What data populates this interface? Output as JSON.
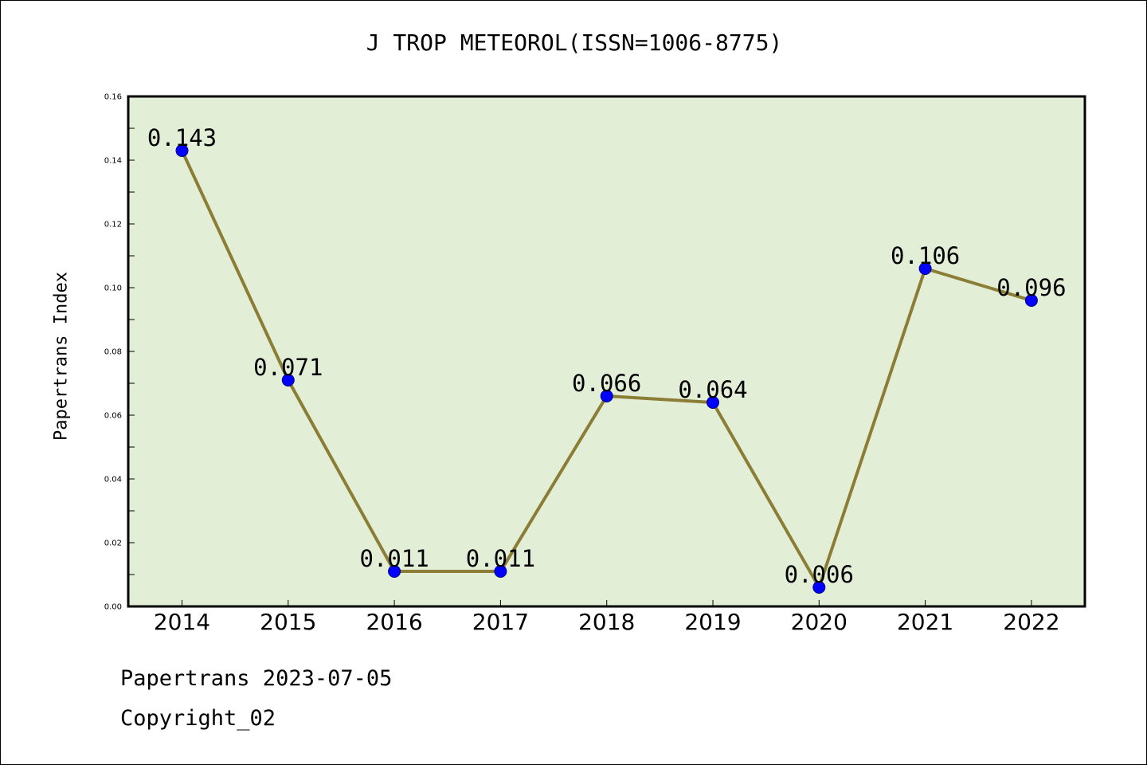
{
  "chart_data": {
    "type": "line",
    "title": "J TROP METEOROL(ISSN=1006-8775)",
    "xlabel": "",
    "ylabel": "Papertrans Index",
    "categories": [
      "2014",
      "2015",
      "2016",
      "2017",
      "2018",
      "2019",
      "2020",
      "2021",
      "2022"
    ],
    "series": [
      {
        "values": [
          0.143,
          0.071,
          0.011,
          0.011,
          0.066,
          0.064,
          0.006,
          0.106,
          0.096
        ],
        "labels": [
          "0.143",
          "0.071",
          "0.011",
          "0.011",
          "0.066",
          "0.064",
          "0.006",
          "0.106",
          "0.096"
        ]
      }
    ],
    "ylim": [
      0,
      0.16
    ],
    "yticks": [
      "0.00",
      "0.02",
      "0.04",
      "0.06",
      "0.08",
      "0.10",
      "0.12",
      "0.14",
      "0.16"
    ],
    "grid": false,
    "legend": "none",
    "colors": {
      "plot_background": "#e2efd6",
      "line": "#8b7d35",
      "marker": "#0000ff",
      "axes": "#000000"
    }
  },
  "footer": {
    "date_line": "Papertrans 2023-07-05",
    "copyright_line": "Copyright_02"
  }
}
